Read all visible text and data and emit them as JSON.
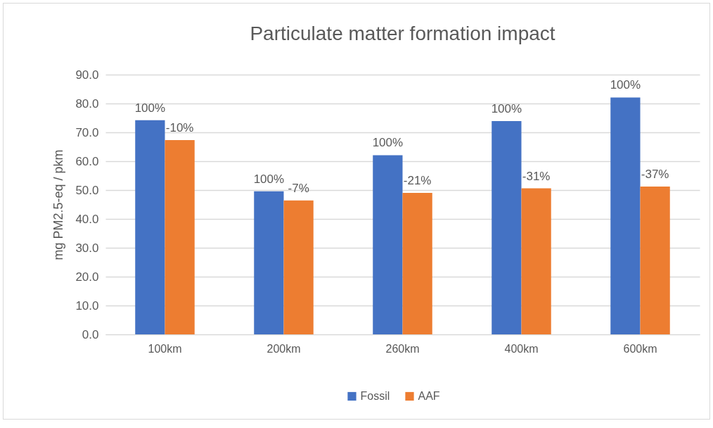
{
  "chart_data": {
    "type": "bar",
    "title": "Particulate matter formation impact",
    "ylabel": "mg PM2.5-eq / pkm",
    "categories": [
      "100km",
      "200km",
      "260km",
      "400km",
      "600km"
    ],
    "series": [
      {
        "name": "Fossil",
        "color": "#4472c4",
        "values": [
          74.2,
          49.6,
          62.1,
          73.9,
          82.1
        ]
      },
      {
        "name": "AAF",
        "color": "#ed7d31",
        "values": [
          67.3,
          46.4,
          49.0,
          50.6,
          51.2
        ]
      }
    ],
    "annotations": [
      {
        "text": "100%",
        "x": "100km",
        "y": 74.2
      },
      {
        "text": "-10%",
        "x": "100km",
        "y": 67.3
      },
      {
        "text": "100%",
        "x": "200km",
        "y": 49.6
      },
      {
        "text": "-7%",
        "x": "200km",
        "y": 46.4
      },
      {
        "text": "100%",
        "x": "260km",
        "y": 62.1
      },
      {
        "text": "-21%",
        "x": "260km",
        "y": 49.0
      },
      {
        "text": "100%",
        "x": "400km",
        "y": 73.9
      },
      {
        "text": "-31%",
        "x": "400km",
        "y": 50.6
      },
      {
        "text": "100%",
        "x": "600km",
        "y": 82.1
      },
      {
        "text": "-37%",
        "x": "600km",
        "y": 51.2
      }
    ],
    "ylim": [
      0,
      90
    ],
    "yticks": [
      {
        "value": 0,
        "label": "0.0"
      },
      {
        "value": 10,
        "label": "10.0"
      },
      {
        "value": 20,
        "label": "20.0"
      },
      {
        "value": 30,
        "label": "30.0"
      },
      {
        "value": 40,
        "label": "40.0"
      },
      {
        "value": 50,
        "label": "50.0"
      },
      {
        "value": 60,
        "label": "60.0"
      },
      {
        "value": 70,
        "label": "70.0"
      },
      {
        "value": 80,
        "label": "80.0"
      },
      {
        "value": 90,
        "label": "90.0"
      }
    ],
    "grid": "y",
    "legend": "bottom"
  }
}
